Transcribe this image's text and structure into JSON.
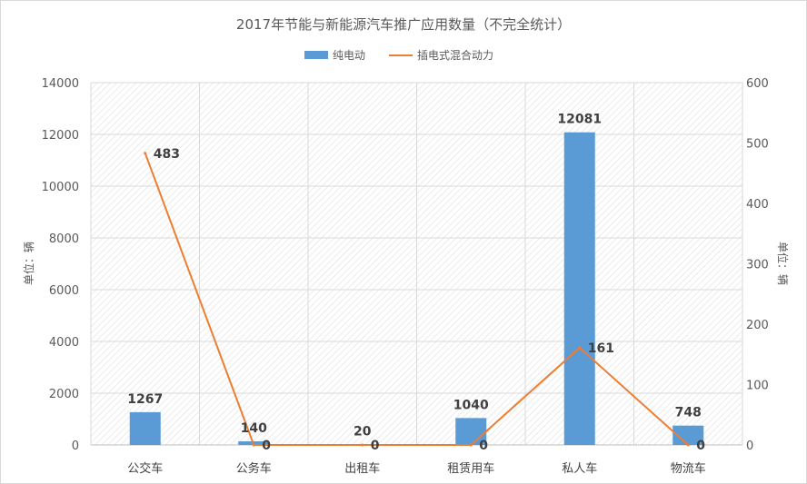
{
  "chart_data": {
    "type": "bar+line",
    "title": "2017年节能与新能源汽车推广应用数量（不完全统计）",
    "categories": [
      "公交车",
      "公务车",
      "出租车",
      "租赁用车",
      "私人车",
      "物流车"
    ],
    "series": [
      {
        "name": "纯电动",
        "type": "bar",
        "axis": "left",
        "values": [
          1267,
          140,
          20,
          1040,
          12081,
          748
        ],
        "color": "#5B9BD5"
      },
      {
        "name": "插电式混合动力",
        "type": "line",
        "axis": "right",
        "values": [
          483,
          0,
          0,
          0,
          161,
          0
        ],
        "color": "#ED7D31"
      }
    ],
    "y_left": {
      "label": "单位：辆",
      "ylim": [
        0,
        14000
      ],
      "ticks": [
        0,
        2000,
        4000,
        6000,
        8000,
        10000,
        12000,
        14000
      ]
    },
    "y_right": {
      "label": "单位：辆",
      "ylim": [
        0,
        600
      ],
      "ticks": [
        0,
        100,
        200,
        300,
        400,
        500,
        600
      ]
    },
    "legend_position": "top-center",
    "grid": true,
    "plot_background": "diagonal-hatch"
  }
}
